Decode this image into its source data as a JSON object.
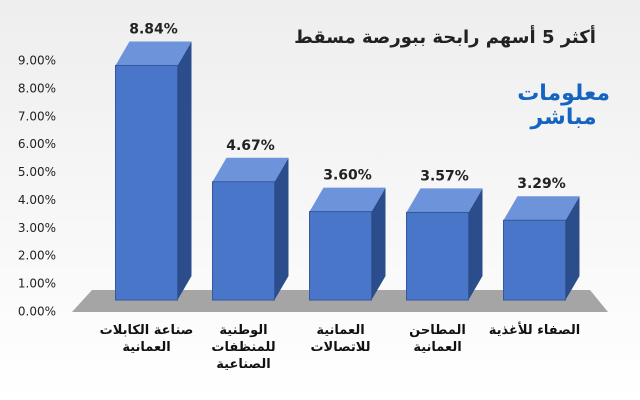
{
  "chart_data": {
    "type": "bar3d",
    "title": "أكثر 5 أسهم رابحة ببورصة مسقط",
    "logo": [
      "معلومات",
      "مباشر"
    ],
    "categories": [
      "صناعة الكابلات\nالعمانية",
      "الوطنية\nللمنظفات\nالصناعية",
      "العمانية\nللاتصالات",
      "المطاحن\nالعمانية",
      "الصفاء للأغذية"
    ],
    "values": [
      8.84,
      4.67,
      3.6,
      3.57,
      3.29
    ],
    "value_labels": [
      "8.84%",
      "4.67%",
      "3.60%",
      "3.57%",
      "3.29%"
    ],
    "color": "#4a76c9",
    "ylim": [
      0,
      9
    ],
    "yticks": [
      {
        "value": 0,
        "label": "0.00%"
      },
      {
        "value": 1,
        "label": "1.00%"
      },
      {
        "value": 2,
        "label": "2.00%"
      },
      {
        "value": 3,
        "label": "3.00%"
      },
      {
        "value": 4,
        "label": "4.00%"
      },
      {
        "value": 5,
        "label": "5.00%"
      },
      {
        "value": 6,
        "label": "6.00%"
      },
      {
        "value": 7,
        "label": "7.00%"
      },
      {
        "value": 8,
        "label": "8.00%"
      },
      {
        "value": 9,
        "label": "9.00%"
      }
    ],
    "grid": false
  }
}
